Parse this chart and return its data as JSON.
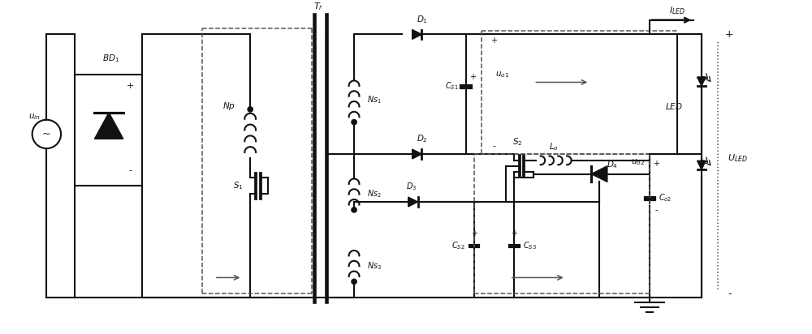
{
  "figsize": [
    10.0,
    4.12
  ],
  "dpi": 100,
  "bg": "#ffffff",
  "lc": "#111111",
  "dc": "#555555",
  "lw": 1.5,
  "lw2": 1.1
}
